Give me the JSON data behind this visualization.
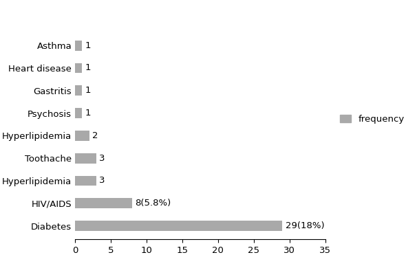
{
  "categories": [
    "Diabetes",
    "HIV/AIDS",
    "Hyperlipidemia",
    "Toothache",
    "Hyperlipidemia",
    "Psychosis",
    "Gastritis",
    "Heart disease",
    "Asthma"
  ],
  "values": [
    29,
    8,
    3,
    3,
    2,
    1,
    1,
    1,
    1
  ],
  "labels": [
    "29(18%)",
    "8(5.8%)",
    "3",
    "3",
    "2",
    "1",
    "1",
    "1",
    "1"
  ],
  "bar_color": "#a9a9a9",
  "legend_label": "frequency",
  "xlim": [
    0,
    35
  ],
  "xticks": [
    0,
    5,
    10,
    15,
    20,
    25,
    30,
    35
  ],
  "background_color": "#ffffff",
  "label_fontsize": 9.5,
  "tick_fontsize": 9.5,
  "legend_fontsize": 9.5,
  "bar_height": 0.45
}
